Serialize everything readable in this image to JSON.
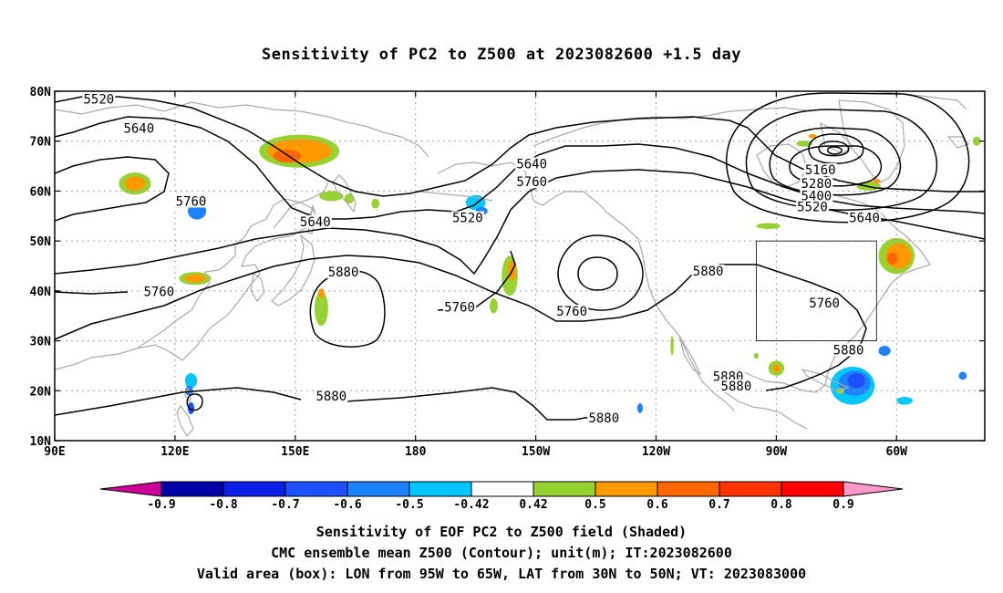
{
  "title": "Sensitivity of PC2 to Z500 at 2023082600 +1.5 day",
  "footer": {
    "line1": "Sensitivity of EOF PC2 to Z500 field (Shaded)",
    "line2": "CMC ensemble mean Z500 (Contour); unit(m); IT:2023082600",
    "line3": "Valid area (box): LON from 95W to 65W, LAT from 30N to 50N; VT: 2023083000"
  },
  "map": {
    "lat_ticks": [
      "80N",
      "70N",
      "60N",
      "50N",
      "40N",
      "30N",
      "20N",
      "10N"
    ],
    "lon_ticks": [
      "90E",
      "120E",
      "150E",
      "180",
      "150W",
      "120W",
      "90W",
      "60W"
    ],
    "lon_range": [
      90,
      322
    ],
    "lat_range": [
      10,
      80
    ],
    "valid_box": {
      "lon": [
        265,
        295
      ],
      "lat": [
        30,
        50
      ]
    },
    "colors": {
      "land_outline": "#a9a9a9",
      "contour": "#000000",
      "grid": "#a0a0a0"
    }
  },
  "contour_labels": [
    {
      "text": "5520",
      "lon": 101,
      "lat": 78.3
    },
    {
      "text": "5640",
      "lon": 111,
      "lat": 72.4
    },
    {
      "text": "5760",
      "lon": 124,
      "lat": 57.8
    },
    {
      "text": "5640",
      "lon": 155,
      "lat": 53.7
    },
    {
      "text": "5760",
      "lon": 116,
      "lat": 39.7
    },
    {
      "text": "5880",
      "lon": 162,
      "lat": 43.6
    },
    {
      "text": "5880",
      "lon": 159,
      "lat": 18.8
    },
    {
      "text": "5520",
      "lon": 193,
      "lat": 54.5
    },
    {
      "text": "5640",
      "lon": 209,
      "lat": 65.3
    },
    {
      "text": "5760",
      "lon": 209,
      "lat": 61.7
    },
    {
      "text": "5760",
      "lon": 191,
      "lat": 36.6
    },
    {
      "text": "5760",
      "lon": 219,
      "lat": 35.8
    },
    {
      "text": "5880",
      "lon": 253,
      "lat": 43.8
    },
    {
      "text": "5880",
      "lon": 227,
      "lat": 14.4
    },
    {
      "text": "5160",
      "lon": 281,
      "lat": 64.1
    },
    {
      "text": "5280",
      "lon": 280,
      "lat": 61.4
    },
    {
      "text": "5400",
      "lon": 280,
      "lat": 58.9
    },
    {
      "text": "5520",
      "lon": 279,
      "lat": 56.7
    },
    {
      "text": "5640",
      "lon": 292,
      "lat": 54.5
    },
    {
      "text": "5760",
      "lon": 282,
      "lat": 37.4
    },
    {
      "text": "5880",
      "lon": 288,
      "lat": 28.0
    },
    {
      "text": "5880",
      "lon": 258,
      "lat": 22.7
    },
    {
      "text": "5880",
      "lon": 260,
      "lat": 20.8
    }
  ],
  "colorbar": {
    "labels": [
      "-0.9",
      "-0.8",
      "-0.7",
      "-0.6",
      "-0.5",
      "-0.42",
      "0.42",
      "0.5",
      "0.6",
      "0.7",
      "0.8",
      "0.9"
    ],
    "low_end_color": "#cc0099",
    "colors": [
      "#0000a8",
      "#0a1ee6",
      "#1e50ff",
      "#1e82ff",
      "#00c8ff",
      "#ffffff",
      "#96d232",
      "#ff9900",
      "#ff6600",
      "#ff3300",
      "#ff0000"
    ],
    "high_end_color": "#ff99cc"
  },
  "shaded_areas": [
    {
      "lon": 151,
      "lat": 68,
      "rx": 10,
      "ry": 3.3,
      "color": "#96d232"
    },
    {
      "lon": 151,
      "lat": 68,
      "rx": 8,
      "ry": 2.4,
      "color": "#ff9900"
    },
    {
      "lon": 148,
      "lat": 67,
      "rx": 3.5,
      "ry": 1.3,
      "color": "#ff6600"
    },
    {
      "lon": 110,
      "lat": 61.5,
      "rx": 4,
      "ry": 2.2,
      "color": "#96d232"
    },
    {
      "lon": 110,
      "lat": 61.5,
      "rx": 2.6,
      "ry": 1.4,
      "color": "#ff9900"
    },
    {
      "lon": 125.5,
      "lat": 56,
      "rx": 2.3,
      "ry": 1.7,
      "color": "#1e82ff"
    },
    {
      "lon": 125,
      "lat": 42.5,
      "rx": 4,
      "ry": 1.3,
      "color": "#96d232"
    },
    {
      "lon": 125,
      "lat": 42.5,
      "rx": 2.6,
      "ry": 0.8,
      "color": "#ff9900"
    },
    {
      "lon": 156.5,
      "lat": 36.5,
      "rx": 1.7,
      "ry": 3.5,
      "color": "#96d232"
    },
    {
      "lon": 156.5,
      "lat": 39.5,
      "rx": 0.8,
      "ry": 1,
      "color": "#ff9900"
    },
    {
      "lon": 159,
      "lat": 59,
      "rx": 3,
      "ry": 1,
      "color": "#96d232"
    },
    {
      "lon": 163.5,
      "lat": 58.5,
      "rx": 1.2,
      "ry": 1,
      "color": "#96d232"
    },
    {
      "lon": 170,
      "lat": 57.5,
      "rx": 1,
      "ry": 1,
      "color": "#96d232"
    },
    {
      "lon": 195,
      "lat": 57.7,
      "rx": 2.5,
      "ry": 1.5,
      "color": "#00c8ff"
    },
    {
      "lon": 196.5,
      "lat": 56,
      "rx": 1.5,
      "ry": 0.8,
      "color": "#1e82ff"
    },
    {
      "lon": 203.5,
      "lat": 43,
      "rx": 2,
      "ry": 4,
      "color": "#96d232"
    },
    {
      "lon": 204,
      "lat": 44,
      "rx": 1,
      "ry": 2,
      "color": "#ff9900"
    },
    {
      "lon": 199.5,
      "lat": 37,
      "rx": 1,
      "ry": 1.5,
      "color": "#96d232"
    },
    {
      "lon": 270,
      "lat": 24.5,
      "rx": 2,
      "ry": 1.5,
      "color": "#96d232"
    },
    {
      "lon": 270,
      "lat": 24.5,
      "rx": 1,
      "ry": 0.8,
      "color": "#ff9900"
    },
    {
      "lon": 265,
      "lat": 27,
      "rx": 0.6,
      "ry": 0.6,
      "color": "#96d232"
    },
    {
      "lon": 289,
      "lat": 21,
      "rx": 5.5,
      "ry": 3.8,
      "color": "#00c8ff"
    },
    {
      "lon": 289.5,
      "lat": 21.5,
      "rx": 4,
      "ry": 2.5,
      "color": "#1e82ff"
    },
    {
      "lon": 290,
      "lat": 22,
      "rx": 2.2,
      "ry": 1.5,
      "color": "#1e50ff"
    },
    {
      "lon": 286,
      "lat": 20,
      "rx": 1,
      "ry": 0.6,
      "color": "#96d232"
    },
    {
      "lon": 297,
      "lat": 28,
      "rx": 1.5,
      "ry": 1,
      "color": "#1e82ff"
    },
    {
      "lon": 302,
      "lat": 18,
      "rx": 2,
      "ry": 0.8,
      "color": "#00c8ff"
    },
    {
      "lon": 316.5,
      "lat": 23,
      "rx": 1,
      "ry": 0.8,
      "color": "#1e82ff"
    },
    {
      "lon": 300,
      "lat": 47,
      "rx": 4.5,
      "ry": 3.6,
      "color": "#96d232"
    },
    {
      "lon": 300.5,
      "lat": 47,
      "rx": 3.2,
      "ry": 2.6,
      "color": "#ff9900"
    },
    {
      "lon": 299,
      "lat": 46.5,
      "rx": 1.4,
      "ry": 1.2,
      "color": "#ff6600"
    },
    {
      "lon": 293,
      "lat": 61,
      "rx": 3,
      "ry": 0.9,
      "color": "#96d232"
    },
    {
      "lon": 295,
      "lat": 62,
      "rx": 1,
      "ry": 0.5,
      "color": "#ff9900"
    },
    {
      "lon": 268,
      "lat": 53,
      "rx": 3,
      "ry": 0.6,
      "color": "#96d232"
    },
    {
      "lon": 320,
      "lat": 70,
      "rx": 1,
      "ry": 0.9,
      "color": "#96d232"
    },
    {
      "lon": 277,
      "lat": 69.5,
      "rx": 2,
      "ry": 0.6,
      "color": "#96d232"
    },
    {
      "lon": 279,
      "lat": 71,
      "rx": 1,
      "ry": 0.4,
      "color": "#ff9900"
    },
    {
      "lon": 124,
      "lat": 22,
      "rx": 1.5,
      "ry": 1.5,
      "color": "#00c8ff"
    },
    {
      "lon": 123.5,
      "lat": 20,
      "rx": 1,
      "ry": 1,
      "color": "#1e82ff"
    },
    {
      "lon": 124,
      "lat": 16.5,
      "rx": 0.8,
      "ry": 1.2,
      "color": "#1e50ff"
    },
    {
      "lon": 236,
      "lat": 16.5,
      "rx": 0.7,
      "ry": 1,
      "color": "#1e82ff"
    },
    {
      "lon": 244,
      "lat": 29,
      "rx": 0.4,
      "ry": 2,
      "color": "#96d232"
    }
  ]
}
